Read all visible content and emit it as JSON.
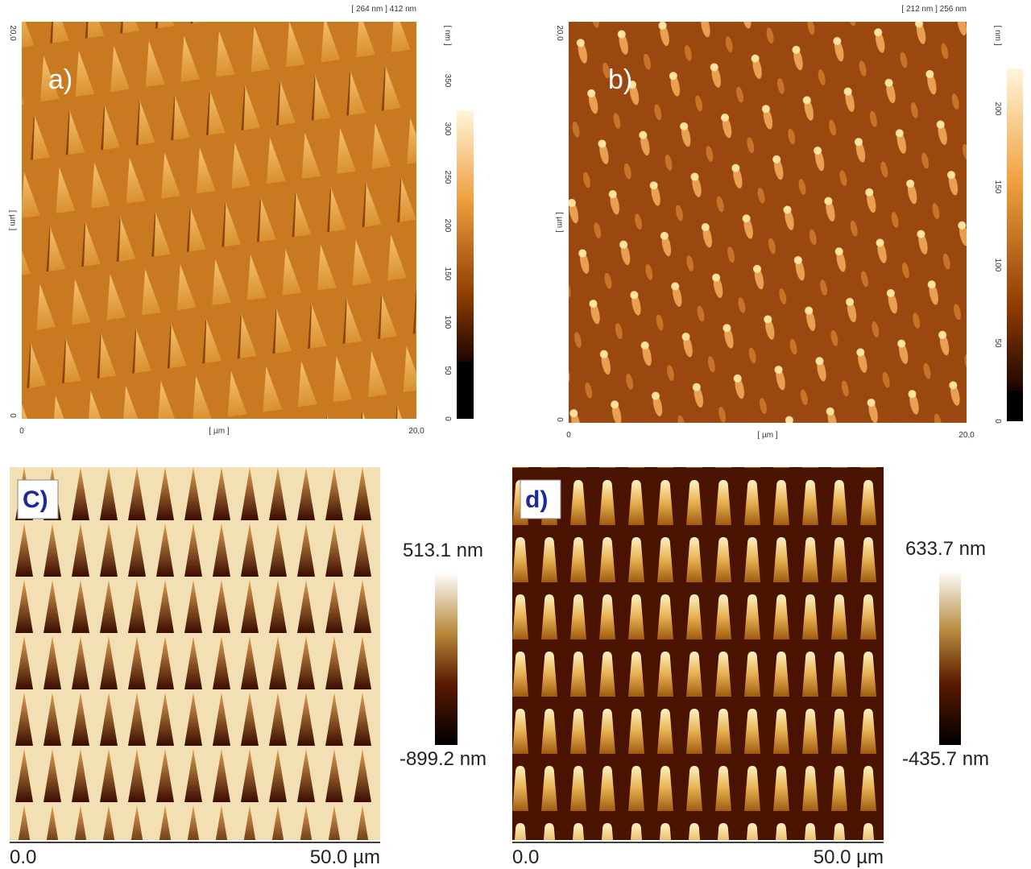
{
  "panels": [
    {
      "label": "a)",
      "range": "[ 264 nm ] 412 nm",
      "y_axis": {
        "max": "20,0",
        "unit": "[ µm ]",
        "min": "0"
      },
      "x_axis": {
        "min": "0",
        "unit": "[ µm ]",
        "max": "20,0"
      },
      "colorbar": {
        "unit": "[ nm ]",
        "ticks": [
          "350",
          "300",
          "250",
          "200",
          "150",
          "100",
          "50",
          "0"
        ]
      }
    },
    {
      "label": "b)",
      "range": "[ 212 nm ] 256 nm",
      "y_axis": {
        "max": "20,0",
        "unit": "[ µm ]",
        "min": "0"
      },
      "x_axis": {
        "min": "0",
        "unit": "[ µm ]",
        "max": "20,0"
      },
      "colorbar": {
        "unit": "[ nm ]",
        "ticks": [
          "200",
          "150",
          "100",
          "50",
          "0"
        ]
      }
    },
    {
      "label": "C)",
      "colorbar": {
        "max": "513.1 nm",
        "min": "-899.2 nm"
      },
      "x_axis": {
        "min": "0.0",
        "max": "50.0 µm"
      }
    },
    {
      "label": "d)",
      "colorbar": {
        "max": "633.7 nm",
        "min": "-435.7 nm"
      },
      "x_axis": {
        "min": "0.0",
        "max": "50.0 µm"
      }
    }
  ]
}
